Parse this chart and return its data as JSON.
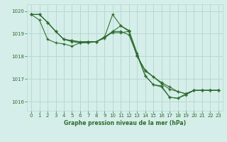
{
  "title": "Graphe pression niveau de la mer (hPa)",
  "background_color": "#d5eeea",
  "grid_color": "#b8d8d2",
  "line_color": "#2d6b2d",
  "xlim": [
    -0.5,
    23.5
  ],
  "ylim": [
    1015.6,
    1020.3
  ],
  "yticks": [
    1016,
    1017,
    1018,
    1019,
    1020
  ],
  "xticks": [
    0,
    1,
    2,
    3,
    4,
    5,
    6,
    7,
    8,
    9,
    10,
    11,
    12,
    13,
    14,
    15,
    16,
    17,
    18,
    19,
    20,
    21,
    22,
    23
  ],
  "series": [
    [
      1019.85,
      1019.85,
      1019.5,
      1019.1,
      1018.75,
      1018.7,
      1018.65,
      1018.65,
      1018.65,
      1018.85,
      1019.85,
      1019.35,
      1019.1,
      1018.05,
      1017.15,
      1016.75,
      1016.7,
      1016.2,
      1016.15,
      1016.35,
      1016.5,
      1016.5,
      1016.5,
      1016.5
    ],
    [
      1019.85,
      1019.85,
      1019.5,
      1019.1,
      1018.75,
      1018.7,
      1018.6,
      1018.65,
      1018.65,
      1018.85,
      1019.1,
      1019.35,
      1019.15,
      1018.15,
      1017.15,
      1016.75,
      1016.65,
      1016.2,
      1016.15,
      1016.3,
      1016.5,
      1016.5,
      1016.5,
      1016.5
    ],
    [
      1019.85,
      1019.85,
      1019.5,
      1019.1,
      1018.75,
      1018.65,
      1018.6,
      1018.6,
      1018.65,
      1018.8,
      1019.1,
      1019.1,
      1018.95,
      1018.05,
      1017.35,
      1017.1,
      1016.8,
      1016.55,
      1016.45,
      1016.35,
      1016.5,
      1016.5,
      1016.5,
      1016.5
    ],
    [
      1019.85,
      1019.6,
      1018.75,
      1018.6,
      1018.55,
      1018.45,
      1018.6,
      1018.65,
      1018.65,
      1018.85,
      1019.05,
      1019.05,
      1019.1,
      1018.0,
      1017.4,
      1017.1,
      1016.85,
      1016.65,
      1016.45,
      1016.35,
      1016.5,
      1016.5,
      1016.5,
      1016.5
    ]
  ]
}
